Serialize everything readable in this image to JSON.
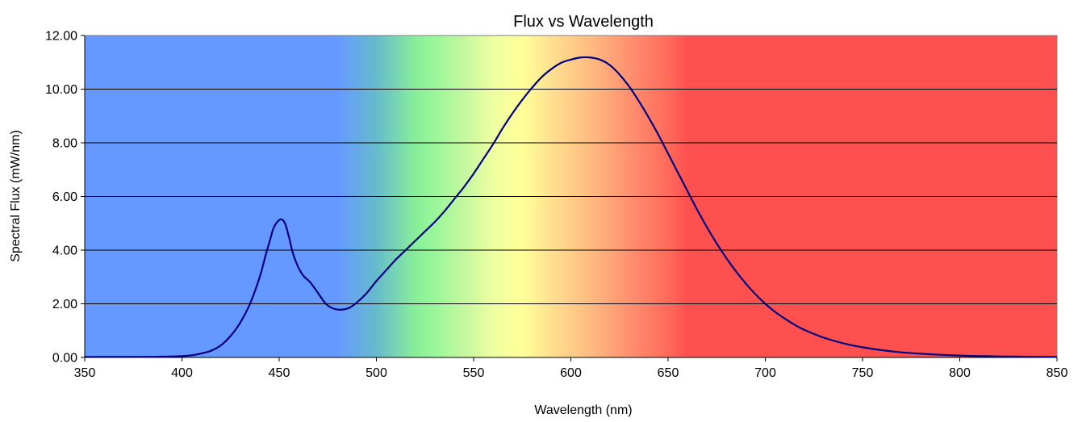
{
  "chart_data": {
    "type": "line",
    "title": "Flux vs Wavelength",
    "xlabel": "Wavelength (nm)",
    "ylabel": "Spectral Flux (mW/nm)",
    "xlim": [
      350,
      850
    ],
    "ylim": [
      0,
      12
    ],
    "x_ticks": [
      "350",
      "400",
      "450",
      "500",
      "550",
      "600",
      "650",
      "700",
      "750",
      "800",
      "850"
    ],
    "y_ticks": [
      "0.00",
      "2.00",
      "4.00",
      "6.00",
      "8.00",
      "10.00",
      "12.00"
    ],
    "grid": "horizontal",
    "legend": "none",
    "series_color": "#000080",
    "background_spectrum": [
      {
        "nm": 350,
        "color": "#6699ff"
      },
      {
        "nm": 480,
        "color": "#6699ff"
      },
      {
        "nm": 500,
        "color": "#66bbcc"
      },
      {
        "nm": 520,
        "color": "#88ee99"
      },
      {
        "nm": 530,
        "color": "#99f799"
      },
      {
        "nm": 545,
        "color": "#c4f7a0"
      },
      {
        "nm": 560,
        "color": "#eeffa0"
      },
      {
        "nm": 575,
        "color": "#ffff99"
      },
      {
        "nm": 590,
        "color": "#ffe090"
      },
      {
        "nm": 610,
        "color": "#ffbb80"
      },
      {
        "nm": 630,
        "color": "#ff9070"
      },
      {
        "nm": 650,
        "color": "#ff6a5a"
      },
      {
        "nm": 660,
        "color": "#ff5050"
      },
      {
        "nm": 850,
        "color": "#ff5050"
      }
    ],
    "series": [
      {
        "x": [
          350,
          360,
          370,
          380,
          390,
          400,
          405,
          410,
          415,
          420,
          425,
          430,
          435,
          440,
          443,
          445,
          447,
          449,
          451,
          453,
          455,
          457,
          459,
          461,
          463,
          466,
          470,
          474,
          478,
          482,
          486,
          490,
          495,
          500,
          505,
          510,
          515,
          520,
          525,
          530,
          535,
          540,
          545,
          550,
          555,
          560,
          565,
          570,
          575,
          580,
          585,
          590,
          595,
          600,
          605,
          610,
          615,
          620,
          625,
          630,
          635,
          640,
          645,
          650,
          655,
          660,
          665,
          670,
          675,
          680,
          685,
          690,
          695,
          700,
          705,
          710,
          715,
          720,
          730,
          740,
          750,
          760,
          770,
          780,
          790,
          800,
          810,
          820,
          830,
          840,
          850
        ],
        "values": [
          0.02,
          0.02,
          0.02,
          0.02,
          0.03,
          0.05,
          0.08,
          0.15,
          0.25,
          0.45,
          0.8,
          1.3,
          2.0,
          3.0,
          3.8,
          4.3,
          4.8,
          5.05,
          5.15,
          5.0,
          4.5,
          3.9,
          3.5,
          3.2,
          3.0,
          2.8,
          2.4,
          2.0,
          1.82,
          1.78,
          1.85,
          2.05,
          2.4,
          2.85,
          3.25,
          3.65,
          4.0,
          4.35,
          4.7,
          5.05,
          5.45,
          5.9,
          6.35,
          6.85,
          7.4,
          7.95,
          8.55,
          9.1,
          9.6,
          10.05,
          10.45,
          10.75,
          10.98,
          11.1,
          11.18,
          11.18,
          11.1,
          10.9,
          10.55,
          10.1,
          9.55,
          8.95,
          8.3,
          7.6,
          6.9,
          6.2,
          5.5,
          4.85,
          4.25,
          3.7,
          3.2,
          2.75,
          2.35,
          2.0,
          1.7,
          1.45,
          1.22,
          1.03,
          0.74,
          0.53,
          0.38,
          0.27,
          0.19,
          0.14,
          0.1,
          0.07,
          0.05,
          0.04,
          0.03,
          0.02,
          0.02
        ]
      }
    ]
  }
}
